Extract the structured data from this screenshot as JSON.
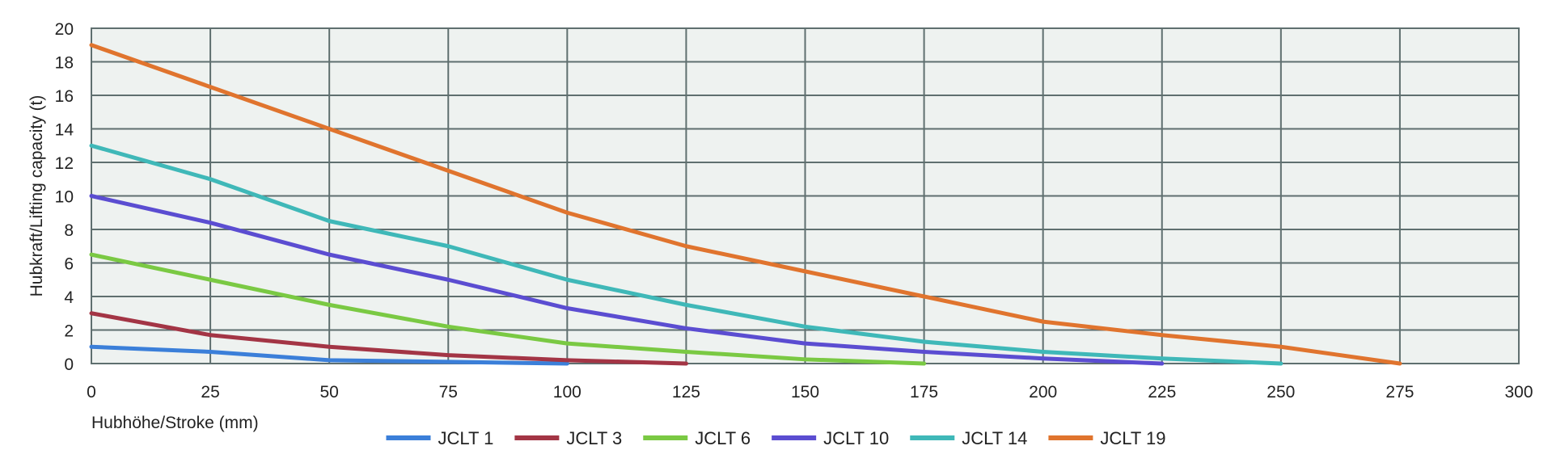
{
  "chart_data": {
    "type": "line",
    "title": "",
    "xlabel": "Hubhöhe/Stroke (mm)",
    "ylabel": "Hubkraft/Lifting capacity (t)",
    "xlim": [
      0,
      300
    ],
    "ylim": [
      0,
      20
    ],
    "xticks": [
      0,
      25,
      50,
      75,
      100,
      125,
      150,
      175,
      200,
      225,
      250,
      275,
      300
    ],
    "yticks": [
      0,
      2,
      4,
      6,
      8,
      10,
      12,
      14,
      16,
      18,
      20
    ],
    "grid": true,
    "legend_position": "bottom-center",
    "plot_background": "#eef2f0",
    "grid_color": "#5f6f6f",
    "series": [
      {
        "name": "JCLT 1",
        "color": "#3b7fd9",
        "x": [
          0,
          25,
          50,
          75,
          100
        ],
        "y": [
          1.0,
          0.7,
          0.2,
          0.1,
          0.0
        ]
      },
      {
        "name": "JCLT 3",
        "color": "#a33545",
        "x": [
          0,
          25,
          50,
          75,
          100,
          125
        ],
        "y": [
          3.0,
          1.7,
          1.0,
          0.5,
          0.2,
          0.0
        ]
      },
      {
        "name": "JCLT 6",
        "color": "#7ac943",
        "x": [
          0,
          25,
          50,
          75,
          100,
          125,
          150,
          175
        ],
        "y": [
          6.5,
          5.0,
          3.5,
          2.2,
          1.2,
          0.7,
          0.25,
          0.0
        ]
      },
      {
        "name": "JCLT 10",
        "color": "#5b4dd1",
        "x": [
          0,
          25,
          50,
          75,
          100,
          125,
          150,
          175,
          200,
          225
        ],
        "y": [
          10.0,
          8.4,
          6.5,
          5.0,
          3.3,
          2.1,
          1.2,
          0.7,
          0.3,
          0.0
        ]
      },
      {
        "name": "JCLT 14",
        "color": "#3fb8b8",
        "x": [
          0,
          25,
          50,
          75,
          100,
          125,
          150,
          175,
          200,
          225,
          250
        ],
        "y": [
          13.0,
          11.0,
          8.5,
          7.0,
          5.0,
          3.5,
          2.2,
          1.3,
          0.7,
          0.3,
          0.0
        ]
      },
      {
        "name": "JCLT 19",
        "color": "#e0742e",
        "x": [
          0,
          25,
          50,
          75,
          100,
          125,
          150,
          175,
          200,
          225,
          250,
          275
        ],
        "y": [
          19.0,
          16.5,
          14.0,
          11.5,
          9.0,
          7.0,
          5.5,
          4.0,
          2.5,
          1.7,
          1.0,
          0.0
        ]
      }
    ]
  }
}
